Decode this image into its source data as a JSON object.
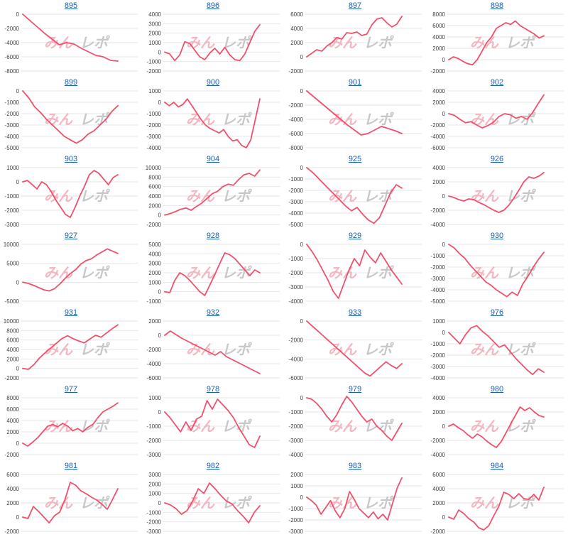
{
  "watermark": {
    "part1": "みん",
    "part2": "レポ"
  },
  "colors": {
    "line": "#f0506e",
    "title": "#1a5fb4",
    "grid": "#e4e4e4",
    "watermark1": "#f3b7c1",
    "watermark2": "#c8c8c8"
  },
  "chart_data": [
    {
      "type": "line",
      "title": "895",
      "yticks": [
        0,
        -2000,
        -4000,
        -6000,
        -8000
      ],
      "ylim": [
        -8000,
        0
      ],
      "values": [
        0,
        -900,
        -1800,
        -2700,
        -3500,
        -4300,
        -4000,
        -4200,
        -4800,
        -5300,
        -5800,
        -6000,
        -6500,
        -6600
      ]
    },
    {
      "type": "line",
      "title": "896",
      "yticks": [
        4000,
        3000,
        2000,
        1000,
        0,
        -1000,
        -2000
      ],
      "ylim": [
        -2000,
        4000
      ],
      "values": [
        0,
        -200,
        -900,
        -300,
        1100,
        900,
        200,
        -500,
        -800,
        -100,
        400,
        -200,
        500,
        -300,
        -800,
        -900,
        -200,
        1000,
        2200,
        2900
      ]
    },
    {
      "type": "line",
      "title": "897",
      "yticks": [
        6000,
        4000,
        2000,
        0,
        -2000
      ],
      "ylim": [
        -2000,
        6000
      ],
      "values": [
        0,
        500,
        1000,
        800,
        1500,
        2000,
        2700,
        2500,
        3400,
        3300,
        3500,
        3000,
        3200,
        4500,
        5300,
        5500,
        4800,
        4200,
        4600,
        5700
      ]
    },
    {
      "type": "line",
      "title": "898",
      "yticks": [
        8000,
        6000,
        4000,
        2000,
        0,
        -2000
      ],
      "ylim": [
        -2000,
        8000
      ],
      "values": [
        0,
        500,
        200,
        -300,
        -700,
        -900,
        0,
        1500,
        3000,
        4000,
        5500,
        6000,
        6500,
        6200,
        6800,
        6000,
        5500,
        5000,
        4500,
        3800,
        4200
      ]
    },
    {
      "type": "line",
      "title": "899",
      "yticks": [
        0,
        -1000,
        -2000,
        -3000,
        -4000,
        -5000
      ],
      "ylim": [
        -5000,
        0
      ],
      "values": [
        0,
        -600,
        -1400,
        -1900,
        -2500,
        -3000,
        -3500,
        -4000,
        -4300,
        -4600,
        -4300,
        -3800,
        -3500,
        -3000,
        -2500,
        -1800,
        -1300
      ]
    },
    {
      "type": "line",
      "title": "900",
      "yticks": [
        1000,
        0,
        -1000,
        -2000,
        -3000,
        -4000
      ],
      "ylim": [
        -4000,
        1000
      ],
      "values": [
        0,
        -300,
        0,
        -400,
        -200,
        300,
        -300,
        -900,
        -1500,
        -2000,
        -2300,
        -2500,
        -2700,
        -2400,
        -3000,
        -3400,
        -3300,
        -3800,
        -4000,
        -3300,
        -1500,
        300
      ]
    },
    {
      "type": "line",
      "title": "901",
      "yticks": [
        0,
        -2000,
        -4000,
        -6000,
        -8000
      ],
      "ylim": [
        -8000,
        0
      ],
      "values": [
        0,
        -800,
        -1600,
        -2400,
        -3200,
        -4000,
        -4800,
        -5500,
        -6200,
        -6000,
        -5500,
        -5000,
        -5300,
        -5600,
        -6000
      ]
    },
    {
      "type": "line",
      "title": "902",
      "yticks": [
        4000,
        2000,
        0,
        -2000,
        -4000,
        -6000
      ],
      "ylim": [
        -6000,
        4000
      ],
      "values": [
        0,
        -300,
        -1000,
        -1600,
        -1400,
        -2000,
        -2500,
        -2100,
        -1500,
        -500,
        0,
        -200,
        -800,
        -500,
        -1000,
        200,
        1800,
        3300
      ]
    },
    {
      "type": "line",
      "title": "903",
      "yticks": [
        1000,
        0,
        -1000,
        -2000,
        -3000
      ],
      "ylim": [
        -3000,
        1000
      ],
      "values": [
        0,
        100,
        -200,
        -500,
        0,
        -200,
        -700,
        -1300,
        -1800,
        -2300,
        -2500,
        -1800,
        -1000,
        -300,
        500,
        800,
        600,
        200,
        -200,
        300,
        500
      ]
    },
    {
      "type": "line",
      "title": "904",
      "yticks": [
        10000,
        8000,
        6000,
        4000,
        2000,
        0,
        -2000
      ],
      "ylim": [
        -2000,
        10000
      ],
      "values": [
        0,
        300,
        700,
        1200,
        1500,
        1000,
        1800,
        2500,
        3500,
        4500,
        5000,
        6000,
        6500,
        6300,
        7500,
        8500,
        8800,
        8200,
        9500
      ]
    },
    {
      "type": "line",
      "title": "925",
      "yticks": [
        0,
        -1000,
        -2000,
        -3000,
        -4000,
        -5000
      ],
      "ylim": [
        -5000,
        0
      ],
      "values": [
        0,
        -400,
        -900,
        -1400,
        -1900,
        -2400,
        -2900,
        -3400,
        -3800,
        -3500,
        -4100,
        -4600,
        -4900,
        -4400,
        -3300,
        -2200,
        -1500,
        -1800
      ]
    },
    {
      "type": "line",
      "title": "926",
      "yticks": [
        4000,
        2000,
        0,
        -2000,
        -4000
      ],
      "ylim": [
        -4000,
        4000
      ],
      "values": [
        0,
        -200,
        -500,
        -700,
        -400,
        -500,
        -900,
        -1200,
        -1600,
        -2000,
        -2300,
        -2000,
        -1300,
        -300,
        800,
        2000,
        2700,
        2500,
        2800,
        3300
      ]
    },
    {
      "type": "line",
      "title": "927",
      "yticks": [
        10000,
        5000,
        0,
        -5000
      ],
      "ylim": [
        -5000,
        10000
      ],
      "values": [
        0,
        -300,
        -800,
        -1400,
        -2000,
        -2300,
        -1700,
        -500,
        1000,
        2300,
        3300,
        4800,
        5700,
        6200,
        7200,
        8000,
        8800,
        8200,
        7600
      ]
    },
    {
      "type": "line",
      "title": "928",
      "yticks": [
        5000,
        4000,
        3000,
        2000,
        1000,
        0,
        -1000
      ],
      "ylim": [
        -1000,
        5000
      ],
      "values": [
        0,
        -100,
        1200,
        2000,
        1700,
        1200,
        600,
        0,
        -400,
        700,
        1800,
        3000,
        4100,
        3900,
        3500,
        2900,
        2300,
        1700,
        2300,
        2000
      ]
    },
    {
      "type": "line",
      "title": "929",
      "yticks": [
        0,
        -1000,
        -2000,
        -3000,
        -4000
      ],
      "ylim": [
        -4000,
        0
      ],
      "values": [
        0,
        -500,
        -1100,
        -1800,
        -2500,
        -3300,
        -3800,
        -2800,
        -1800,
        -1000,
        -1500,
        -400,
        -900,
        -1300,
        -600,
        -1200,
        -1800,
        -2300,
        -2800
      ]
    },
    {
      "type": "line",
      "title": "930",
      "yticks": [
        0,
        -1000,
        -2000,
        -3000,
        -4000,
        -5000
      ],
      "ylim": [
        -5000,
        0
      ],
      "values": [
        0,
        -300,
        -800,
        -1200,
        -1800,
        -2300,
        -2800,
        -3300,
        -3600,
        -4000,
        -4300,
        -4600,
        -4200,
        -4500,
        -3500,
        -2800,
        -2000,
        -1300,
        -700
      ]
    },
    {
      "type": "line",
      "title": "931",
      "yticks": [
        10000,
        8000,
        6000,
        4000,
        2000,
        0,
        -2000
      ],
      "ylim": [
        -2000,
        10000
      ],
      "values": [
        0,
        -200,
        800,
        2200,
        3300,
        4300,
        5300,
        6300,
        6900,
        6300,
        5800,
        5400,
        6200,
        7000,
        6600,
        7500,
        8400,
        9200
      ]
    },
    {
      "type": "line",
      "title": "932",
      "yticks": [
        2000,
        0,
        -2000,
        -4000,
        -6000
      ],
      "ylim": [
        -6000,
        2000
      ],
      "values": [
        0,
        600,
        100,
        -400,
        -800,
        -1200,
        -1600,
        -2000,
        -2400,
        -2800,
        -2300,
        -3000,
        -3400,
        -3800,
        -4200,
        -4600,
        -5000,
        -5400
      ]
    },
    {
      "type": "line",
      "title": "933",
      "yticks": [
        0,
        -2000,
        -4000,
        -6000
      ],
      "ylim": [
        -6000,
        0
      ],
      "values": [
        0,
        -500,
        -1000,
        -1500,
        -2000,
        -2500,
        -3000,
        -3500,
        -4000,
        -4500,
        -5000,
        -5500,
        -5800,
        -5300,
        -4800,
        -4300,
        -4700,
        -5000,
        -4500
      ]
    },
    {
      "type": "line",
      "title": "976",
      "yticks": [
        1000,
        0,
        -1000,
        -2000,
        -3000,
        -4000
      ],
      "ylim": [
        -4000,
        1000
      ],
      "values": [
        0,
        -500,
        -1000,
        -200,
        400,
        600,
        100,
        -300,
        -800,
        -1300,
        -1100,
        -1700,
        -2300,
        -2800,
        -3300,
        -3700,
        -3200,
        -3500
      ]
    },
    {
      "type": "line",
      "title": "977",
      "yticks": [
        8000,
        6000,
        4000,
        2000,
        0,
        -2000
      ],
      "ylim": [
        -2000,
        8000
      ],
      "values": [
        0,
        -500,
        200,
        1000,
        2000,
        3000,
        3300,
        2900,
        3500,
        3000,
        2200,
        2600,
        2000,
        2800,
        3300,
        4500,
        5500,
        6000,
        6500,
        7100
      ]
    },
    {
      "type": "line",
      "title": "978",
      "yticks": [
        1000,
        0,
        -1000,
        -2000,
        -3000
      ],
      "ylim": [
        -3000,
        1000
      ],
      "values": [
        0,
        -400,
        -900,
        -1400,
        -700,
        -1300,
        -500,
        -300,
        800,
        200,
        900,
        500,
        100,
        -400,
        -1100,
        -1700,
        -2300,
        -2500,
        -1700
      ]
    },
    {
      "type": "line",
      "title": "979",
      "yticks": [
        0,
        -1000,
        -2000,
        -3000,
        -4000
      ],
      "ylim": [
        -4000,
        0
      ],
      "values": [
        0,
        -100,
        -400,
        -800,
        -1300,
        -1700,
        -1200,
        -500,
        100,
        -300,
        -800,
        -1300,
        -1700,
        -1500,
        -2000,
        -2300,
        -2700,
        -3000,
        -2400,
        -1800
      ]
    },
    {
      "type": "line",
      "title": "980",
      "yticks": [
        4000,
        2000,
        0,
        -2000,
        -4000
      ],
      "ylim": [
        -4000,
        4000
      ],
      "values": [
        0,
        300,
        -200,
        -600,
        -1200,
        -1700,
        -1100,
        -1500,
        -2100,
        -2600,
        -3000,
        -2200,
        -1000,
        300,
        1500,
        2700,
        2200,
        2600,
        2000,
        1500,
        1300
      ]
    },
    {
      "type": "line",
      "title": "981",
      "yticks": [
        6000,
        4000,
        2000,
        0,
        -2000
      ],
      "ylim": [
        -2000,
        6000
      ],
      "values": [
        0,
        -200,
        1500,
        800,
        0,
        -800,
        200,
        700,
        2500,
        4900,
        4500,
        3700,
        3300,
        2800,
        2400,
        1800,
        1100,
        2500,
        4000
      ]
    },
    {
      "type": "line",
      "title": "982",
      "yticks": [
        3000,
        2000,
        1000,
        0,
        -1000,
        -2000,
        -3000
      ],
      "ylim": [
        -3000,
        3000
      ],
      "values": [
        0,
        -200,
        -600,
        -1200,
        -800,
        200,
        1500,
        1000,
        2100,
        1500,
        800,
        200,
        -100,
        -800,
        -1400,
        -2100,
        -1000,
        -300
      ]
    },
    {
      "type": "line",
      "title": "983",
      "yticks": [
        2000,
        1000,
        0,
        -1000,
        -2000,
        -3000
      ],
      "ylim": [
        -3000,
        2000
      ],
      "values": [
        0,
        -300,
        -700,
        -1500,
        -900,
        -300,
        -1200,
        -1800,
        -1000,
        500,
        -200,
        -1000,
        -1400,
        -1800,
        -1300,
        -1900,
        -1500,
        -2000,
        -600,
        800,
        1700
      ]
    },
    {
      "type": "line",
      "title": "984",
      "yticks": [
        6000,
        4000,
        2000,
        0,
        -2000
      ],
      "ylim": [
        -2000,
        6000
      ],
      "values": [
        0,
        -300,
        1000,
        500,
        -200,
        -700,
        -1500,
        -1800,
        -1200,
        200,
        1500,
        3500,
        3200,
        2600,
        3300,
        2600,
        2500,
        3200,
        2400,
        4200
      ]
    }
  ]
}
